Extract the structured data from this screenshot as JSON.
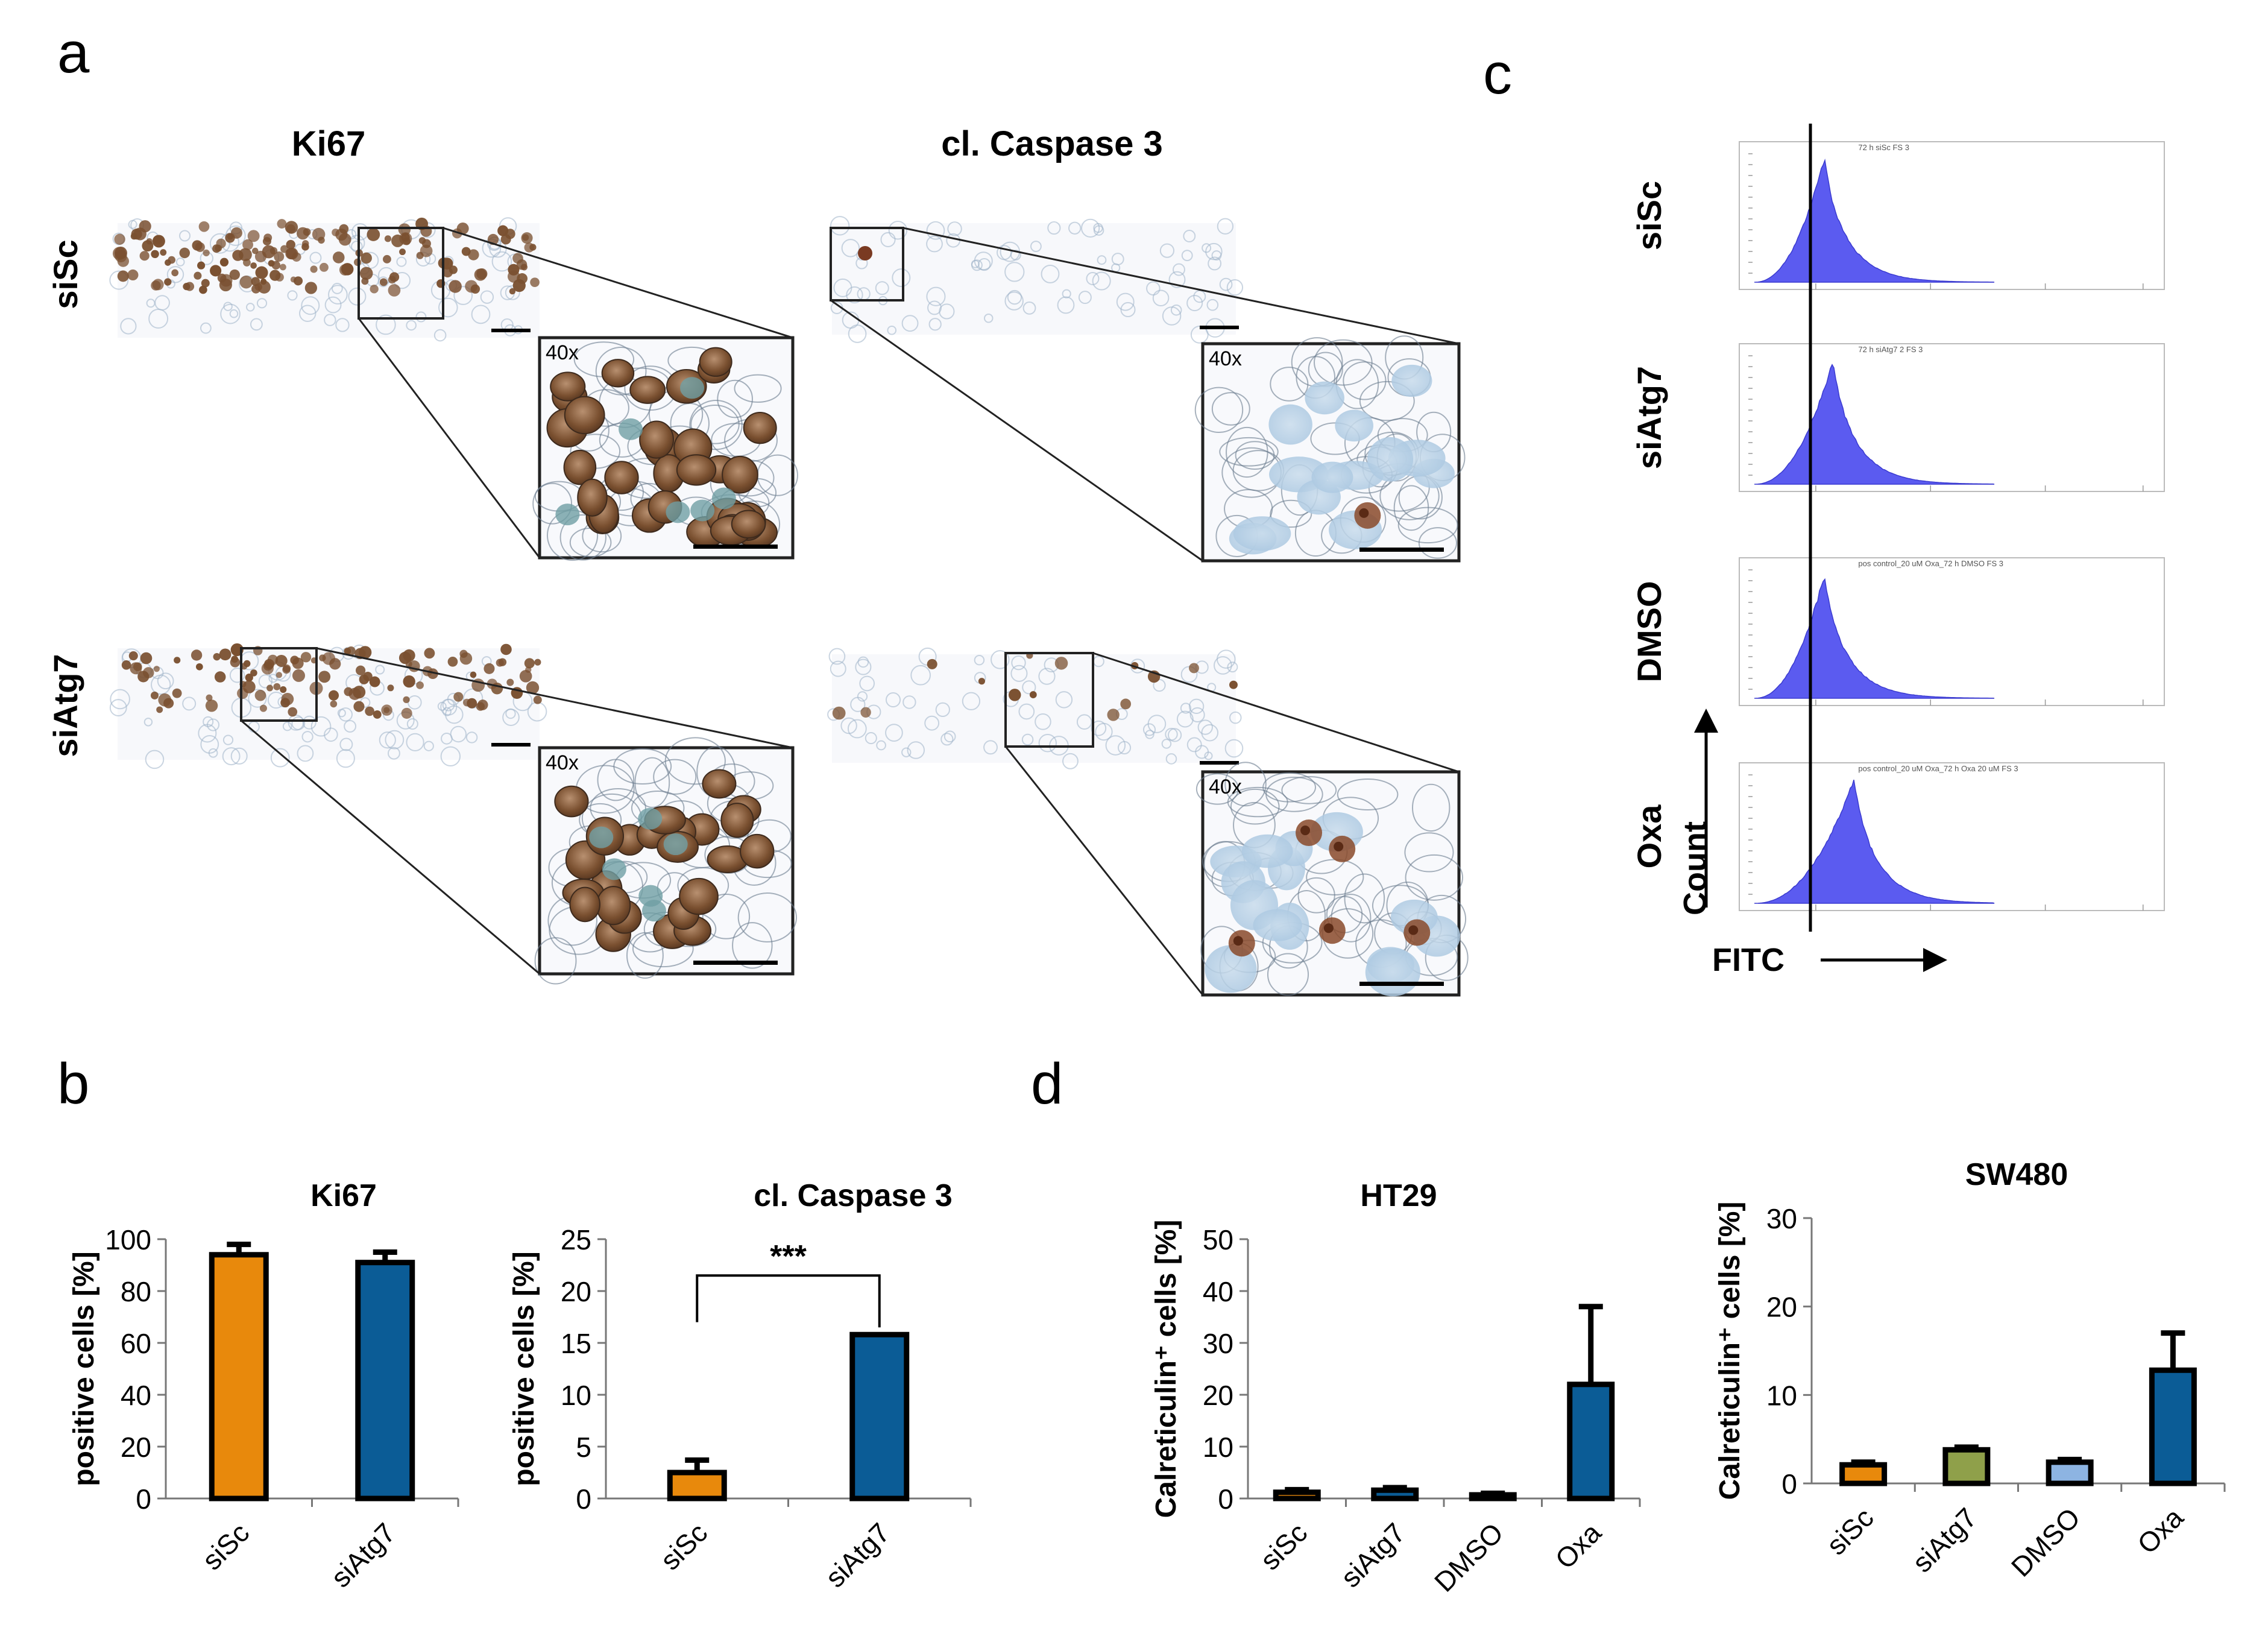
{
  "panel_labels": {
    "a": "a",
    "b": "b",
    "c": "c",
    "d": "d"
  },
  "panel_a": {
    "col_titles": [
      "Ki67",
      "cl. Caspase 3"
    ],
    "row_labels": [
      "siSc",
      "siAtg7"
    ],
    "magnification": "40x"
  },
  "panel_c": {
    "row_labels": [
      "siSc",
      "siAtg7",
      "DMSO",
      "Oxa"
    ],
    "hist_titles": [
      "72 h siSc FS 3",
      "72 h siAtg7 2 FS 3",
      "pos control_20 uM Oxa_72 h DMSO FS 3",
      "pos control_20 uM Oxa_72 h Oxa 20 uM FS 3"
    ],
    "ylabel": "Count",
    "xlabel": "FITC"
  },
  "colors": {
    "orange": "#E8890C",
    "blue": "#0B5C96",
    "olive": "#8FA04A",
    "lightblue": "#8DB4E2",
    "histogram": "#5b5bf0"
  },
  "chart_data": [
    {
      "type": "bar",
      "panel": "b",
      "title": "Ki67",
      "ylabel": "positive cells [%]",
      "categories": [
        "siSc",
        "siAtg7"
      ],
      "values": [
        94,
        91
      ],
      "errors": [
        4,
        4
      ],
      "colors": [
        "#E8890C",
        "#0B5C96"
      ],
      "ylim": [
        0,
        100
      ],
      "yticks": [
        0,
        20,
        40,
        60,
        80,
        100
      ]
    },
    {
      "type": "bar",
      "panel": "b",
      "title": "cl. Caspase 3",
      "ylabel": "positive cells [%]",
      "categories": [
        "siSc",
        "siAtg7"
      ],
      "values": [
        2.5,
        15.8
      ],
      "errors": [
        1.2,
        0
      ],
      "colors": [
        "#E8890C",
        "#0B5C96"
      ],
      "ylim": [
        0,
        25
      ],
      "yticks": [
        0,
        5,
        10,
        15,
        20,
        25
      ],
      "significance": "***"
    },
    {
      "type": "bar",
      "panel": "d",
      "title": "HT29",
      "ylabel": "Calreticulin⁺ cells [%]",
      "categories": [
        "siSc",
        "siAtg7",
        "DMSO",
        "Oxa"
      ],
      "values": [
        1.2,
        1.6,
        0.7,
        22
      ],
      "errors": [
        0.5,
        0.5,
        0.3,
        15
      ],
      "colors": [
        "#E8890C",
        "#0B5C96",
        "#0B5C96",
        "#0B5C96"
      ],
      "ylim": [
        0,
        50
      ],
      "yticks": [
        0,
        10,
        20,
        30,
        40,
        50
      ]
    },
    {
      "type": "bar",
      "panel": "d",
      "title": "SW480",
      "ylabel": "Calreticulin⁺ cells [%]",
      "categories": [
        "siSc",
        "siAtg7",
        "DMSO",
        "Oxa"
      ],
      "values": [
        2.1,
        3.8,
        2.4,
        12.8
      ],
      "errors": [
        0.3,
        0.3,
        0.3,
        4.2
      ],
      "colors": [
        "#E8890C",
        "#8FA04A",
        "#8DB4E2",
        "#0B5C96"
      ],
      "ylim": [
        0,
        30
      ],
      "yticks": [
        0,
        10,
        20,
        30
      ]
    }
  ]
}
